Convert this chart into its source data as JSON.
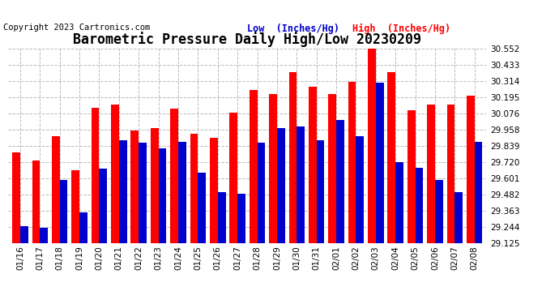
{
  "title": "Barometric Pressure Daily High/Low 20230209",
  "copyright": "Copyright 2023 Cartronics.com",
  "ylabel_low": "Low  (Inches/Hg)",
  "ylabel_high": "High  (Inches/Hg)",
  "dates": [
    "01/16",
    "01/17",
    "01/18",
    "01/19",
    "01/20",
    "01/21",
    "01/22",
    "01/23",
    "01/24",
    "01/25",
    "01/26",
    "01/27",
    "01/28",
    "01/29",
    "01/30",
    "01/31",
    "02/01",
    "02/02",
    "02/03",
    "02/04",
    "02/05",
    "02/06",
    "02/07",
    "02/08"
  ],
  "high_values": [
    29.79,
    29.73,
    29.91,
    29.66,
    30.12,
    30.14,
    29.95,
    29.97,
    30.11,
    29.93,
    29.9,
    30.08,
    30.25,
    30.22,
    30.38,
    30.27,
    30.22,
    30.31,
    30.55,
    30.38,
    30.1,
    30.14,
    30.14,
    30.21
  ],
  "low_values": [
    29.25,
    29.24,
    29.59,
    29.35,
    29.67,
    29.88,
    29.86,
    29.82,
    29.87,
    29.64,
    29.5,
    29.49,
    29.86,
    29.97,
    29.98,
    29.88,
    30.03,
    29.91,
    30.3,
    29.72,
    29.68,
    29.59,
    29.5,
    29.87
  ],
  "bar_color_high": "#ff0000",
  "bar_color_low": "#0000cc",
  "ylim_min": 29.125,
  "ylim_max": 30.552,
  "yticks": [
    29.125,
    29.244,
    29.363,
    29.482,
    29.601,
    29.72,
    29.839,
    29.958,
    30.076,
    30.195,
    30.314,
    30.433,
    30.552
  ],
  "background_color": "#ffffff",
  "grid_color": "#cccccc",
  "title_fontsize": 12,
  "tick_fontsize": 7.5,
  "legend_fontsize": 8.5,
  "copyright_fontsize": 7.5
}
